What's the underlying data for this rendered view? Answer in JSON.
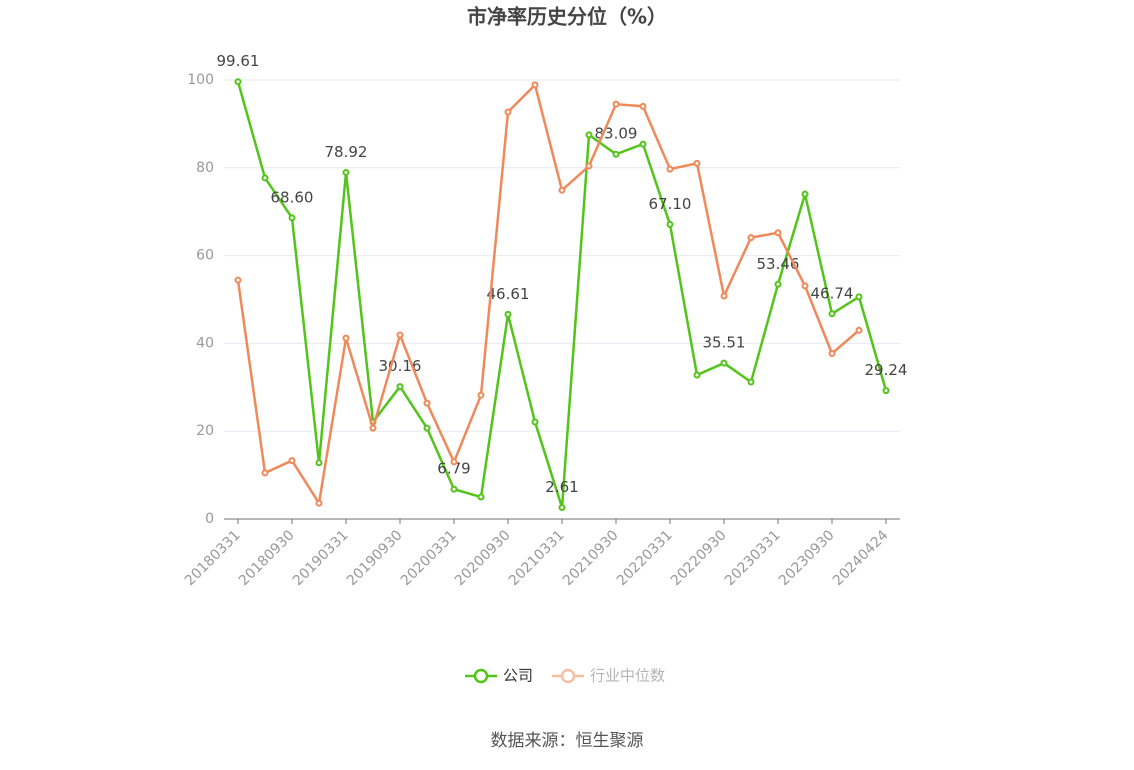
{
  "chart_data": {
    "type": "line",
    "title": "市净率历史分位（%）",
    "source": "数据来源：恒生聚源",
    "categories": [
      "20180331",
      null,
      "20180930",
      null,
      "20190331",
      null,
      "20190930",
      null,
      "20200331",
      null,
      "20200930",
      null,
      "20210331",
      null,
      "20210930",
      null,
      "20220331",
      null,
      "20220930",
      null,
      "20230331",
      null,
      "20230930",
      null,
      "20240424"
    ],
    "series": [
      {
        "name": "公司",
        "color": "#52c41a",
        "values": [
          99.61,
          77.7,
          68.6,
          12.8,
          78.92,
          22.1,
          30.16,
          20.7,
          6.79,
          5.0,
          46.61,
          22.1,
          2.61,
          87.5,
          83.09,
          85.4,
          67.1,
          32.8,
          35.51,
          31.2,
          53.46,
          74.0,
          46.74,
          50.6,
          29.24
        ],
        "value_labels": [
          "99.61",
          null,
          "68.60",
          null,
          "78.92",
          null,
          "30.16",
          null,
          "6.79",
          null,
          "46.61",
          null,
          "2.61",
          null,
          "83.09",
          null,
          "67.10",
          null,
          "35.51",
          null,
          "53.46",
          null,
          "46.74",
          null,
          "29.24"
        ]
      },
      {
        "name": "行业中位数",
        "color": "#f0895a",
        "values": [
          54.4,
          10.5,
          13.3,
          3.6,
          41.2,
          20.7,
          41.9,
          26.4,
          13.0,
          28.2,
          92.7,
          98.9,
          74.9,
          80.4,
          94.5,
          94.0,
          79.7,
          81.0,
          50.8,
          64.1,
          65.2,
          53.1,
          37.7,
          43.0,
          null
        ]
      }
    ],
    "ylim": [
      0,
      100
    ],
    "yticks": [
      0,
      20,
      40,
      60,
      80,
      100
    ],
    "grid": true,
    "legend": "bottom"
  }
}
